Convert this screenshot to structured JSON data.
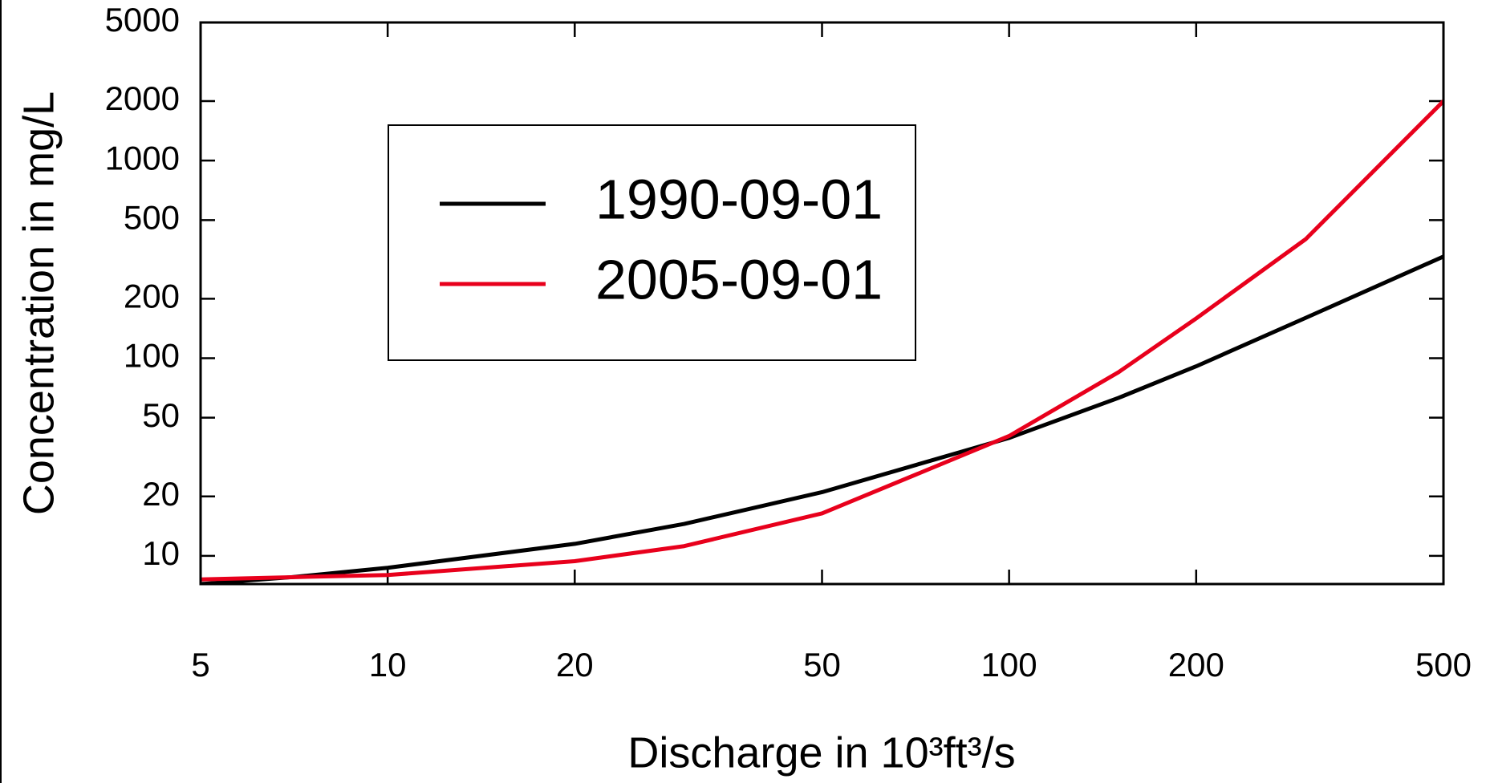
{
  "chart_data": {
    "type": "line",
    "x_label": "Discharge in 10³ft³/s",
    "y_label": "Concentration in mg/L",
    "x": [
      5,
      7,
      10,
      20,
      30,
      50,
      100,
      150,
      200,
      300,
      500
    ],
    "series": [
      {
        "name": "1990-09-01",
        "color": "#000000",
        "values": [
          7.2,
          7.8,
          8.7,
          11.5,
          14.5,
          21,
          39.5,
          63,
          91,
          160,
          327
        ]
      },
      {
        "name": "2005-09-01",
        "color": "#e8001c",
        "values": [
          7.6,
          7.8,
          8.0,
          9.4,
          11.2,
          16.4,
          40.4,
          85,
          159,
          400,
          2000
        ]
      }
    ],
    "xlim": [
      5,
      500
    ],
    "ylim": [
      7.2,
      5000
    ],
    "xticks": [
      5,
      10,
      20,
      50,
      100,
      200,
      500
    ],
    "yticks": [
      10,
      20,
      50,
      100,
      200,
      500,
      1000,
      2000,
      5000
    ],
    "xscale": "log",
    "yscale": "log",
    "grid": false,
    "legend": "upper left"
  }
}
